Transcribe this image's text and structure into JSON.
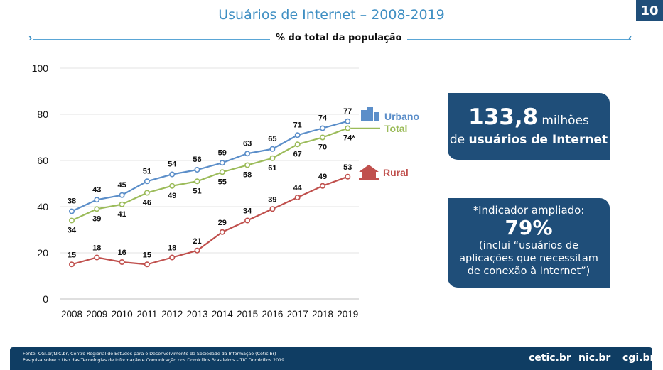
{
  "header": {
    "title": "Usuários de Internet – 2008-2019",
    "page_number": "10",
    "subtitle": "% do total da população"
  },
  "chart_data": {
    "type": "line",
    "categories": [
      "2008",
      "2009",
      "2010",
      "2011",
      "2012",
      "2013",
      "2014",
      "2015",
      "2016",
      "2017",
      "2018",
      "2019"
    ],
    "ylim": [
      0,
      100
    ],
    "yticks": [
      0,
      20,
      40,
      60,
      80,
      100
    ],
    "series": [
      {
        "name": "Urbano",
        "color": "#5b8ec9",
        "values": [
          38,
          43,
          45,
          51,
          54,
          56,
          59,
          63,
          65,
          71,
          74,
          77
        ],
        "labels": [
          "38",
          "43",
          "45",
          "51",
          "54",
          "56",
          "59",
          "63",
          "65",
          "71",
          "74",
          "77"
        ]
      },
      {
        "name": "Total",
        "color": "#9bbb59",
        "values": [
          34,
          39,
          41,
          46,
          49,
          51,
          55,
          58,
          61,
          67,
          70,
          74
        ],
        "labels": [
          "34",
          "39",
          "41",
          "46",
          "49",
          "51",
          "55",
          "58",
          "61",
          "67",
          "70",
          "74*"
        ]
      },
      {
        "name": "Rural",
        "color": "#c0504d",
        "values": [
          15,
          18,
          16,
          15,
          18,
          21,
          29,
          34,
          39,
          44,
          49,
          53
        ],
        "labels": [
          "15",
          "18",
          "16",
          "15",
          "18",
          "21",
          "29",
          "34",
          "39",
          "44",
          "49",
          "53"
        ]
      }
    ]
  },
  "callouts": {
    "users": {
      "number": "133,8",
      "unit": "milhões",
      "prefix": "de",
      "bold": "usuários de Internet"
    },
    "indicator": {
      "line1": "*Indicador ampliado:",
      "percent": "79%",
      "line3": "(inclui “usuários de",
      "line4": "aplicações que necessitam",
      "line5": "de conexão à Internet”)"
    }
  },
  "footer": {
    "source_line1": "Fonte: CGI.br/NIC.br, Centro Regional de Estudos para o Desenvolvimento da Sociedade da Informação (Cetic.br)",
    "source_line2": "Pesquisa sobre o Uso das Tecnologias de Informação e Comunicação nos Domicílios Brasileiros – TIC Domicílios 2019",
    "logos": [
      "cetic.br",
      "nic.br",
      "cgi.br"
    ]
  }
}
